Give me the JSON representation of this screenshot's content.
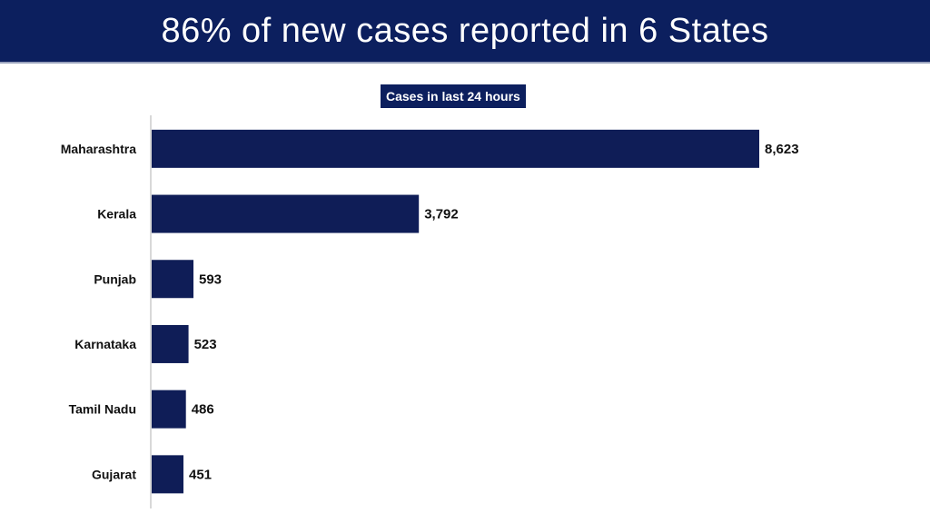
{
  "header": {
    "title": "86% of new cases reported in 6 States"
  },
  "colors": {
    "banner": "#0c1f5e",
    "bar": "#0f1d57",
    "axis": "#b0b0b0"
  },
  "chart_data": {
    "type": "bar",
    "orientation": "horizontal",
    "title": "Cases in last 24 hours",
    "categories": [
      "Maharashtra",
      "Kerala",
      "Punjab",
      "Karnataka",
      "Tamil Nadu",
      "Gujarat"
    ],
    "values": [
      8623,
      3792,
      593,
      523,
      486,
      451
    ],
    "value_labels": [
      "8,623",
      "3,792",
      "593",
      "523",
      "486",
      "451"
    ],
    "xlabel": "",
    "ylabel": "",
    "xlim": [
      0,
      8623
    ],
    "grid": false,
    "legend": "top-center"
  }
}
